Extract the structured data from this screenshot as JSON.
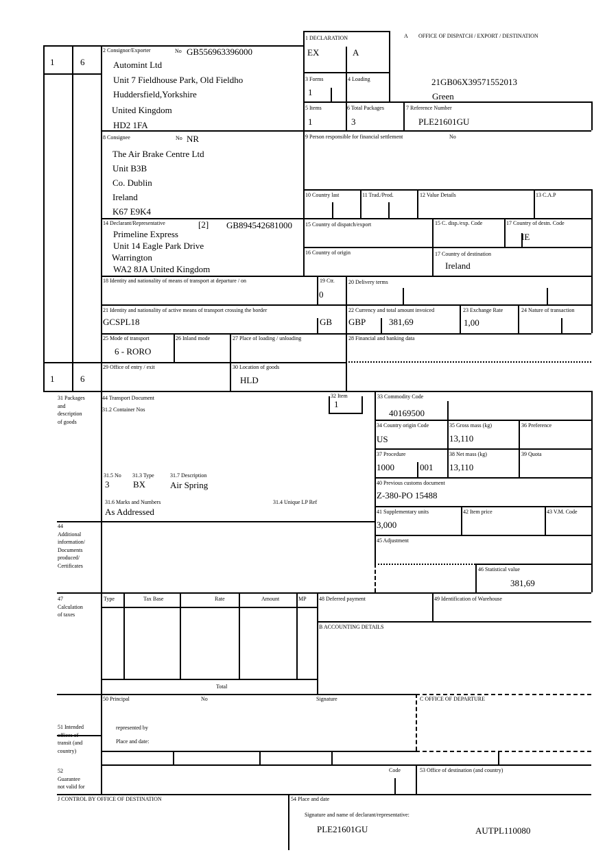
{
  "left_box": {
    "forms_a": "1",
    "forms_b": "6",
    "forms_a_bottom": "1",
    "forms_b_bottom": "6"
  },
  "box1": {
    "label": "1 DECLARATION",
    "type": "EX",
    "subtype": "A"
  },
  "box_a": {
    "letter": "A",
    "label": "OFFICE OF DISPATCH / EXPORT / DESTINATION",
    "mrn": "21GB06X39571552013",
    "route": "Green"
  },
  "box2": {
    "label": "2 Consignor/Exporter",
    "no_label": "No",
    "no": "GB556963396000",
    "lines": [
      "Automint Ltd",
      "Unit 7 Fieldhouse Park, Old Fieldho",
      "Huddersfield,Yorkshire",
      "United Kingdom",
      "HD2 1FA"
    ]
  },
  "box3": {
    "label": "3 Forms",
    "value": "1"
  },
  "box4": {
    "label": "4 Loading"
  },
  "box5": {
    "label": "5 Items",
    "value": "1"
  },
  "box6": {
    "label": "6 Total Packages",
    "value": "3"
  },
  "box7": {
    "label": "7 Reference Number",
    "value": "PLE21601GU"
  },
  "box8": {
    "label": "8 Consignee",
    "no_label": "No",
    "no": "NR",
    "lines": [
      "The Air Brake Centre Ltd",
      "Unit B3B",
      "Co. Dublin",
      "Ireland",
      "K67 E9K4"
    ]
  },
  "box9": {
    "label": "9 Person responsible for financial settlement",
    "no_label": "No"
  },
  "box10": {
    "label": "10 Country last"
  },
  "box11": {
    "label": "11 Trad./Prod."
  },
  "box12": {
    "label": "12 Value Details"
  },
  "box13": {
    "label": "13 C.A.P"
  },
  "box14": {
    "label": "14 Declarant/Representative",
    "code": "[2]",
    "no": "GB894542681000",
    "lines": [
      "Primeline Express",
      "Unit 14 Eagle Park Drive",
      "Warrington",
      "WA2 8JA United Kingdom"
    ]
  },
  "box15": {
    "label": "15 Country of dispatch/export",
    "code_label": "15 C. disp./exp. Code"
  },
  "box16": {
    "label": "16 Country of origin"
  },
  "box17": {
    "code_label": "17 Country of destn. Code",
    "code": "IE",
    "label": "17 Country of destination",
    "value": "Ireland"
  },
  "box18": {
    "label": "18 Identity and nationality of means of transport at departure / on"
  },
  "box19": {
    "label": "19 Ctr.",
    "value": "0"
  },
  "box20": {
    "label": "20 Delivery terms"
  },
  "box21": {
    "label": "21 Identity and nationality of active means of transport crossing the border",
    "value": "GCSPL18",
    "nationality": "GB"
  },
  "box22": {
    "label": "22 Currency and total amount invoiced",
    "currency": "GBP",
    "amount": "381,69"
  },
  "box23": {
    "label": "23 Exchange Rate",
    "value": "1,00"
  },
  "box24": {
    "label": "24 Nature of transaction"
  },
  "box25": {
    "label": "25 Mode of transport",
    "value": "6 - RORO"
  },
  "box26": {
    "label": "26 Inland mode"
  },
  "box27": {
    "label": "27 Place of loading / unloading"
  },
  "box28": {
    "label": "28 Financial and banking data"
  },
  "box29": {
    "label": "29 Office of entry / exit"
  },
  "box30": {
    "label": "30 Location of goods",
    "value": "HLD"
  },
  "box31": {
    "label": "31 Packages\nand\ndescription\nof goods",
    "transport_doc": "44 Transport Document",
    "container": "31.2 Container Nos",
    "no_label": "31.5 No",
    "no": "3",
    "type_label": "31.3 Type",
    "type": "BX",
    "desc_label": "31.7 Description",
    "desc": "Air Spring",
    "marks_label": "31.6 Marks and Numbers",
    "marks": "As Addressed",
    "lp_label": "31.4 Unique LP Ref"
  },
  "box32": {
    "label": "32 Item",
    "value": "1"
  },
  "box33": {
    "label": "33 Commodity Code",
    "value": "40169500"
  },
  "box34": {
    "label": "34 Country origin Code",
    "value": "US"
  },
  "box35": {
    "label": "35 Gross mass (kg)",
    "value": "13,110"
  },
  "box36": {
    "label": "36 Preference"
  },
  "box37": {
    "label": "37 Procedure",
    "value": "1000",
    "value2": "001"
  },
  "box38": {
    "label": "38 Net mass (kg)",
    "value": "13,110"
  },
  "box39": {
    "label": "39 Quota"
  },
  "box40": {
    "label": "40 Previous customs document",
    "value": "Z-380-PO 15488"
  },
  "box41": {
    "label": "41 Supplementary units",
    "value": "3,000"
  },
  "box42": {
    "label": "42 Item price"
  },
  "box43": {
    "label": "43 V.M. Code"
  },
  "box44": {
    "label": "44\nAdditional\ninformation/\nDocuments\nproduced/\nCertificates"
  },
  "box45": {
    "label": "45 Adjustment"
  },
  "box46": {
    "label": "46 Statistical value",
    "value": "381,69"
  },
  "box47": {
    "label": "47\nCalculation\n   of taxes",
    "cols": [
      "Type",
      "Tax Base",
      "Rate",
      "Amount",
      "MP"
    ],
    "total": "Total"
  },
  "box48": {
    "label": "48 Deferred payment"
  },
  "box49": {
    "label": "49 Identification of Warehouse"
  },
  "box_b": {
    "label": "B ACCOUNTING DETAILS"
  },
  "box50": {
    "label": "50 Principal",
    "no_label": "No",
    "signature": "Signature",
    "represented": "represented by",
    "place": "Place and date:"
  },
  "box_c": {
    "label": "C OFFICE OF DEPARTURE"
  },
  "box51": {
    "label": "51 Intended\noffices of\ntransit (and\ncountry)"
  },
  "box52": {
    "label": "52\nGuarantee\nnot valid for",
    "code": "Code"
  },
  "box53": {
    "label": "53 Office of destination (and country)"
  },
  "box_j": {
    "label": "J CONTROL BY OFFICE OF DESTINATION"
  },
  "box54": {
    "label": "54 Place and date",
    "signature": "Signature and name of declarant/representative:",
    "ref": "PLE21601GU",
    "id": "AUTPL110080"
  }
}
